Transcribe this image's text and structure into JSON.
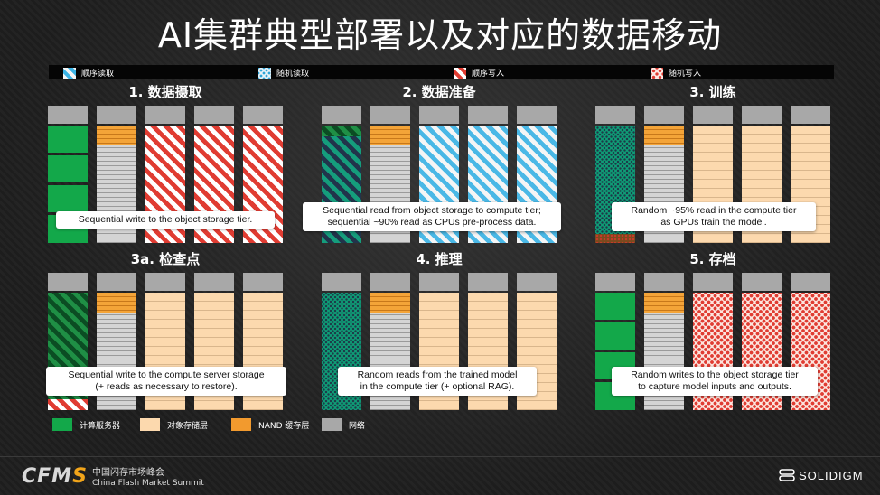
{
  "title": "AI集群典型部署以及对应的数据移动",
  "legend_top": [
    {
      "label": "顺序读取",
      "icon": "sequential-read-swatch"
    },
    {
      "label": "随机读取",
      "icon": "random-read-swatch"
    },
    {
      "label": "顺序写入",
      "icon": "sequential-write-swatch"
    },
    {
      "label": "随机写入",
      "icon": "random-write-swatch"
    }
  ],
  "panels": [
    {
      "title": "1. 数据摄取",
      "caption": "Sequential write to the object storage tier."
    },
    {
      "title": "2. 数据准备",
      "caption_line1": "Sequential read from object storage to compute tier;",
      "caption_line2": "sequential ~90% read as CPUs pre-process data."
    },
    {
      "title": "3. 训练",
      "caption_line1": "Random ~95% read in the compute tier",
      "caption_line2": "as GPUs train the model."
    },
    {
      "title": "3a. 检查点",
      "caption_line1": "Sequential write to the compute server storage",
      "caption_line2": "(+ reads as necessary to restore)."
    },
    {
      "title": "4. 推理",
      "caption_line1": "Random reads from the trained model",
      "caption_line2": "in the compute tier (+ optional RAG)."
    },
    {
      "title": "5. 存档",
      "caption_line1": "Random writes to the object storage tier",
      "caption_line2": "to capture model inputs and outputs."
    }
  ],
  "legend_bottom": [
    {
      "label": "计算服务器",
      "color": "#13a84a"
    },
    {
      "label": "对象存储层",
      "color": "#fcd9ae"
    },
    {
      "label": "NAND 缓存层",
      "color": "#f29a2e"
    },
    {
      "label": "网络",
      "color": "#a8a8a8"
    }
  ],
  "footer": {
    "logo_text_a": "CFM",
    "logo_text_b": "S",
    "name_cn": "中国闪存市场峰会",
    "name_en": "China Flash Market Summit",
    "brand": "SOLIDIGM"
  }
}
